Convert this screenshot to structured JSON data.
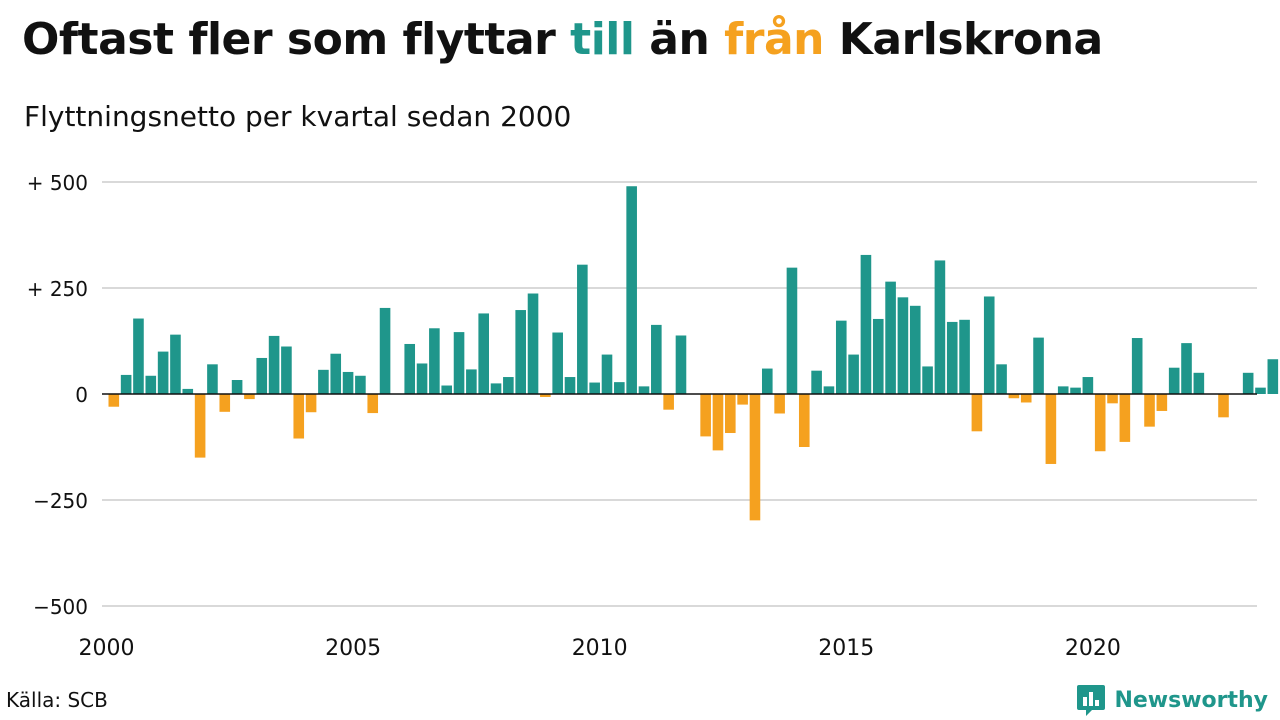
{
  "title": {
    "before": "Oftast fler som flyttar ",
    "pos": "till",
    "middle": " än ",
    "neg": "från",
    "after": " Karlskrona"
  },
  "subtitle": "Flyttningsnetto per kvartal sedan 2000",
  "source": "Källa: SCB",
  "brand": "Newsworthy",
  "colors": {
    "positive": "#1f968b",
    "negative": "#f5a11f",
    "grid": "#d9d9d9",
    "baseline": "#111111"
  },
  "chart_data": {
    "type": "bar",
    "x_start": "2000 Q1",
    "x_ticks": [
      {
        "value": 2000,
        "label": "2000"
      },
      {
        "value": 2005,
        "label": "2005"
      },
      {
        "value": 2010,
        "label": "2010"
      },
      {
        "value": 2015,
        "label": "2015"
      },
      {
        "value": 2020,
        "label": "2020"
      }
    ],
    "y_ticks": [
      {
        "value": 500,
        "label": "+ 500"
      },
      {
        "value": 250,
        "label": "+ 250"
      },
      {
        "value": 0,
        "label": "0"
      },
      {
        "value": -250,
        "label": "−250"
      },
      {
        "value": -500,
        "label": "−500"
      }
    ],
    "ylim": [
      -500,
      500
    ],
    "grid": true,
    "values": [
      -30,
      45,
      178,
      43,
      100,
      140,
      12,
      -150,
      70,
      -42,
      33,
      -12,
      85,
      137,
      112,
      -105,
      -43,
      57,
      95,
      52,
      43,
      -45,
      203,
      0,
      118,
      72,
      155,
      20,
      146,
      58,
      190,
      25,
      40,
      198,
      237,
      -7,
      145,
      40,
      305,
      27,
      93,
      28,
      490,
      18,
      163,
      -37,
      138,
      0,
      -100,
      -133,
      -92,
      -25,
      -298,
      60,
      -46,
      298,
      -125,
      55,
      18,
      173,
      93,
      328,
      177,
      265,
      228,
      208,
      65,
      315,
      170,
      175,
      -88,
      230,
      70,
      -10,
      -20,
      133,
      -165,
      18,
      15,
      40,
      -135,
      -22,
      -113,
      132,
      -77,
      -40,
      62,
      120,
      50,
      0,
      -55,
      0,
      50,
      15,
      82
    ]
  }
}
